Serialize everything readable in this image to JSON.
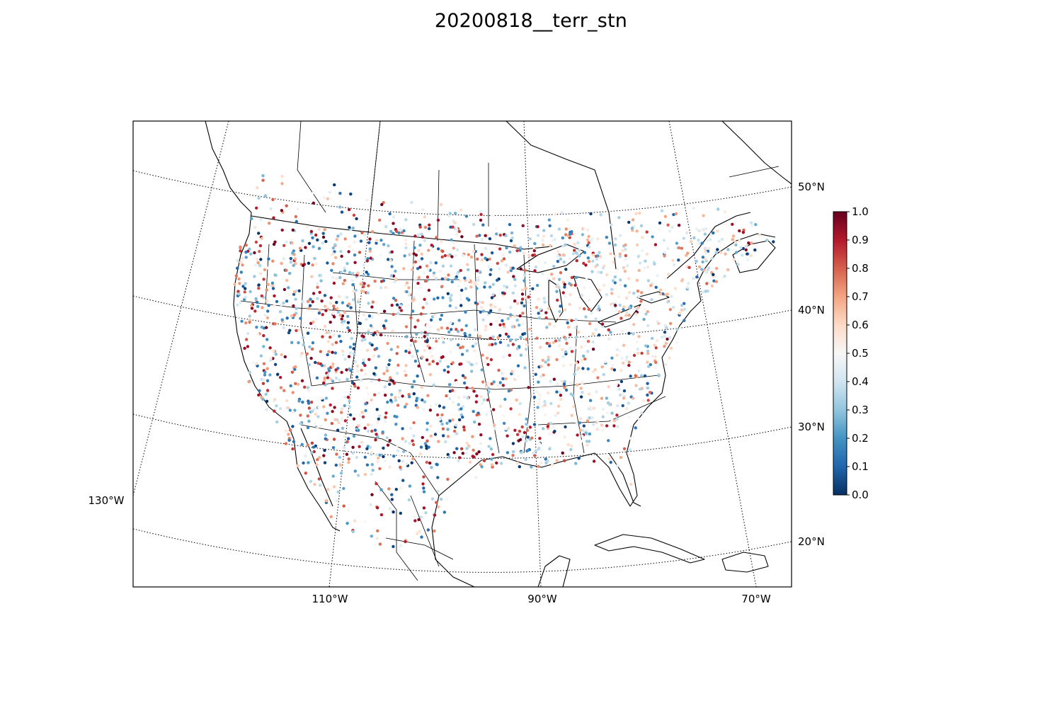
{
  "title": "20200818__terr_stn",
  "map": {
    "projection": "conic",
    "lon_labels": [
      "130°W",
      "110°W",
      "90°W",
      "70°W"
    ],
    "lat_labels": [
      "20°N",
      "30°N",
      "40°N",
      "50°N"
    ],
    "graticule_style": "dotted",
    "colors": {
      "frame": "#000000",
      "coast": "#000000",
      "graticule": "#000000"
    }
  },
  "colorbar": {
    "colormap": "RdBu_r",
    "range": [
      0.0,
      1.0
    ],
    "ticks": [
      "0.0",
      "0.1",
      "0.2",
      "0.3",
      "0.4",
      "0.5",
      "0.6",
      "0.7",
      "0.8",
      "0.9",
      "1.0"
    ],
    "stops": [
      "#053061",
      "#2166ac",
      "#4393c3",
      "#92c5de",
      "#d1e5f0",
      "#f7f7f7",
      "#fddbc7",
      "#f4a582",
      "#d6604d",
      "#b2182b",
      "#67001f"
    ]
  },
  "chart_data": {
    "type": "scatter",
    "title": "20200818__terr_stn",
    "value_range": [
      0.0,
      1.0
    ],
    "point_count_approx": 2300,
    "description_of_distribution": "station points over CONUS, southern Canada and northern Mexico; values spread across full 0.0–1.0 range"
  }
}
